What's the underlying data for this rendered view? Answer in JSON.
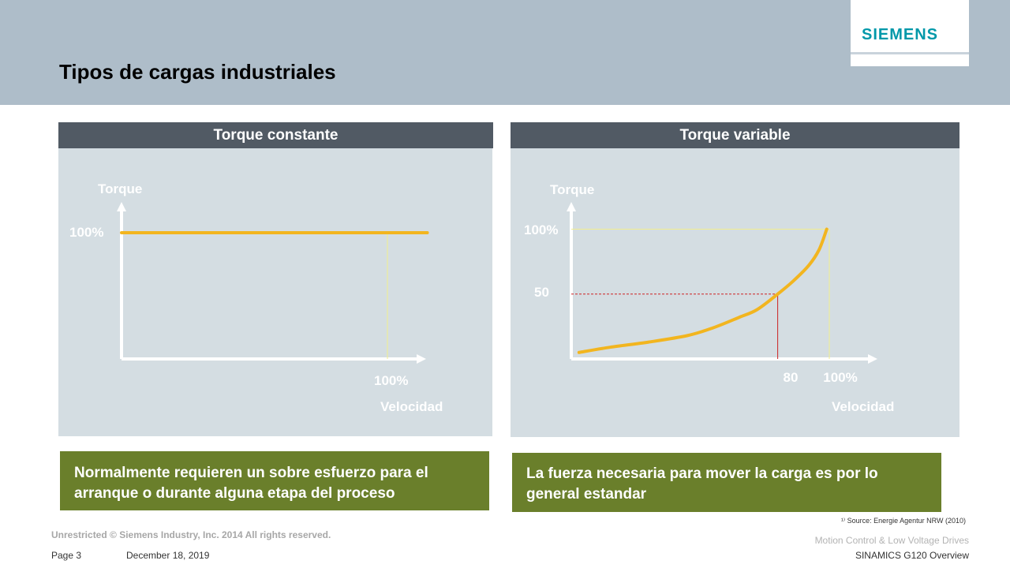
{
  "header": {
    "title": "Tipos de cargas industriales",
    "logo_text": "SIEMENS"
  },
  "panels": {
    "left": {
      "heading": "Torque constante",
      "note": "Normalmente requieren un sobre esfuerzo para el arranque o durante alguna etapa del proceso"
    },
    "right": {
      "heading": "Torque variable",
      "note": "La fuerza necesaria para mover la carga es por lo general estandar"
    }
  },
  "chart_data": [
    {
      "type": "line",
      "title": "Torque constante",
      "ylabel": "Torque",
      "xlabel": "Velocidad",
      "y_tick_labels": [
        "100%"
      ],
      "x_tick_labels": [
        "100%"
      ],
      "series": [
        {
          "x": [
            0,
            100,
            115
          ],
          "y": [
            100,
            100,
            100
          ]
        }
      ],
      "reference_lines": [
        {
          "type": "vertical",
          "x": 100
        }
      ],
      "xlim": [
        0,
        115
      ],
      "ylim": [
        0,
        125
      ],
      "colors": {
        "curve": "#f2b51f",
        "guide": "#f2ee8e",
        "axis": "#ffffff"
      }
    },
    {
      "type": "line",
      "title": "Torque variable",
      "ylabel": "Torque",
      "xlabel": "Velocidad",
      "y_tick_labels": [
        "100%",
        "50"
      ],
      "x_tick_labels": [
        "80",
        "100%"
      ],
      "series": [
        {
          "x": [
            3,
            15,
            30,
            45,
            55,
            65,
            72,
            80,
            86,
            92,
            96,
            99
          ],
          "y": [
            5,
            9,
            13,
            18,
            24,
            32,
            38,
            50,
            60,
            72,
            84,
            100
          ]
        }
      ],
      "reference_lines": [
        {
          "type": "horizontal",
          "y": 100,
          "color": "#f2ee8e"
        },
        {
          "type": "vertical",
          "x": 100,
          "color": "#f2ee8e"
        },
        {
          "type": "horizontal",
          "y": 50,
          "x_to": 80,
          "color": "#cc2222",
          "dashed": true
        },
        {
          "type": "vertical",
          "x": 80,
          "y_to": 50,
          "color": "#cc2222"
        }
      ],
      "xlim": [
        0,
        115
      ],
      "ylim": [
        0,
        125
      ],
      "colors": {
        "curve": "#f2b51f",
        "axis": "#ffffff"
      }
    }
  ],
  "footer": {
    "copyright": "Unrestricted © Siemens Industry, Inc. 2014  All rights reserved.",
    "page": "Page 3",
    "date": "December 18, 2019",
    "source": "¹⁾ Source: Energie Agentur NRW (2010)",
    "division": "Motion Control & Low Voltage Drives",
    "product": "SINAMICS  G120 Overview"
  }
}
